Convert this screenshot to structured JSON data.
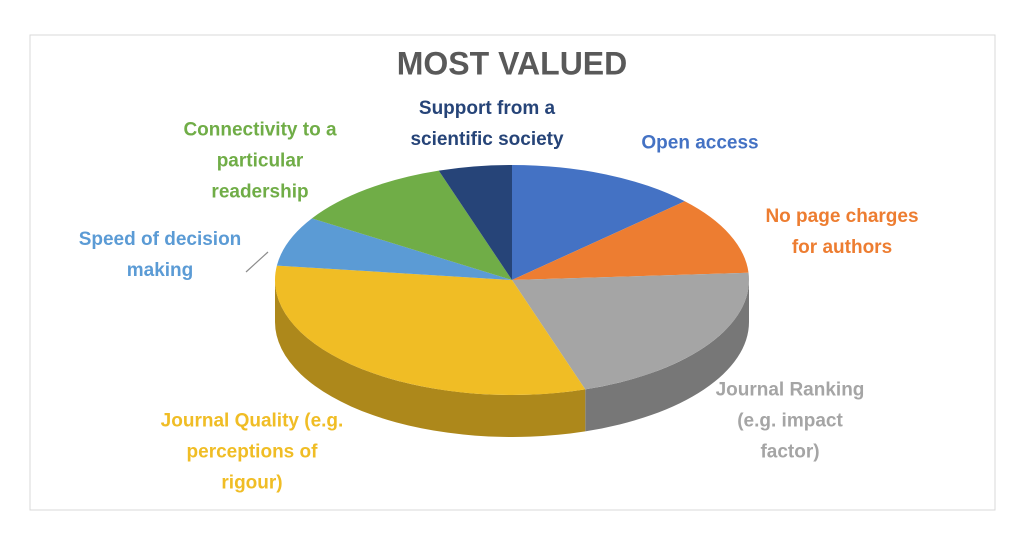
{
  "chart_data": {
    "type": "pie",
    "title": "MOST VALUED",
    "categories": [
      "Open access",
      "No page charges for authors",
      "Journal Ranking (e.g. impact factor)",
      "Journal Quality (e.g. perceptions of rigour)",
      "Speed of decision making",
      "Connectivity to a particular readership",
      "Support from a scientific society"
    ],
    "values": [
      13,
      11,
      21,
      32,
      7,
      11,
      5
    ],
    "colors": [
      "#4472c4",
      "#ed7d31",
      "#a5a5a5",
      "#f0bd25",
      "#5b9bd5",
      "#70ad47",
      "#264478"
    ]
  }
}
